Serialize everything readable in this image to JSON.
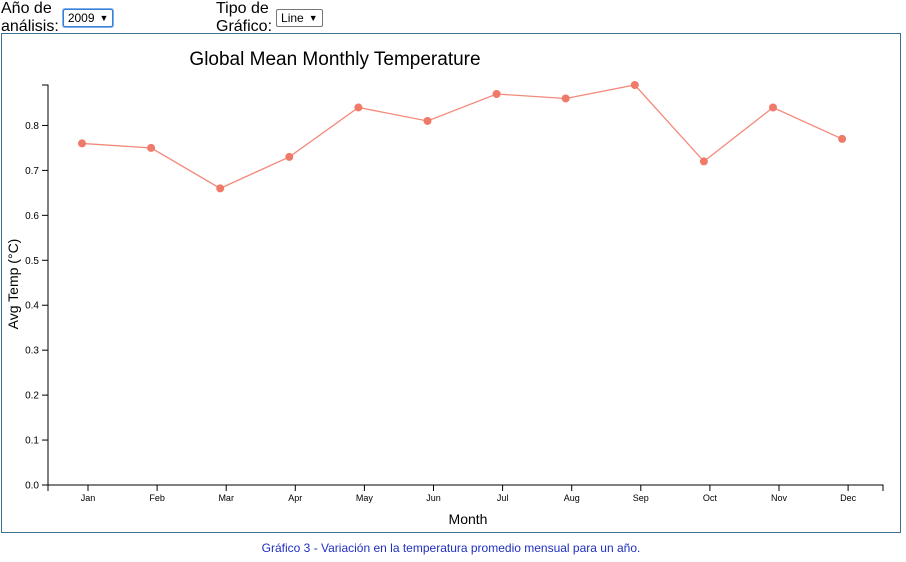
{
  "controls": {
    "year_label": "Año de análisis:",
    "year_value": "2009",
    "type_label": "Tipo de Gráfico:",
    "type_value": "Line"
  },
  "chart_data": {
    "type": "line",
    "title": "Global Mean Monthly Temperature",
    "xlabel": "Month",
    "ylabel": "Avg Temp (°C)",
    "categories": [
      "Jan",
      "Feb",
      "Mar",
      "Apr",
      "May",
      "Jun",
      "Jul",
      "Aug",
      "Sep",
      "Oct",
      "Nov",
      "Dec"
    ],
    "values": [
      0.76,
      0.75,
      0.66,
      0.73,
      0.84,
      0.81,
      0.87,
      0.86,
      0.89,
      0.72,
      0.84,
      0.77
    ],
    "ylim": [
      0,
      0.89
    ],
    "yticks": [
      "0.0",
      "0.1",
      "0.2",
      "0.3",
      "0.4",
      "0.5",
      "0.6",
      "0.7",
      "0.8"
    ],
    "grid": false,
    "line_color": "#f4897b",
    "marker_color": "#f07a6a"
  },
  "caption": "Gráfico 3 - Variación en la temperatura promedio mensual para un año."
}
